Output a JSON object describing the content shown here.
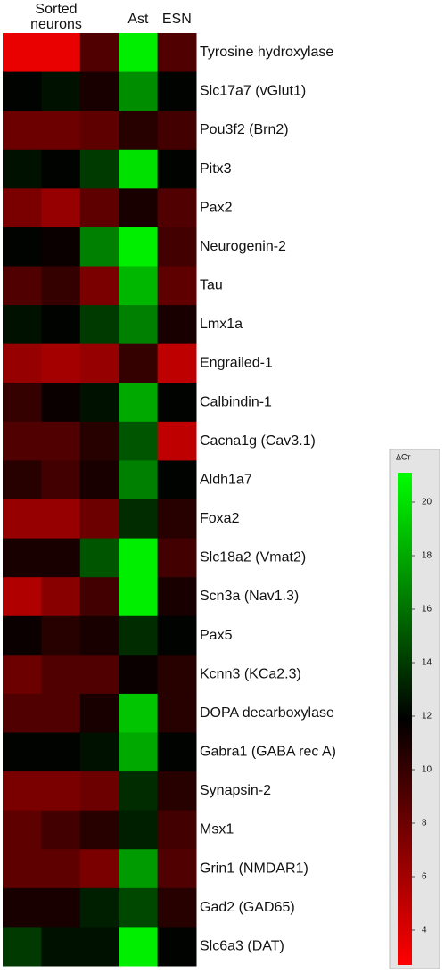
{
  "chart_data": {
    "type": "heatmap",
    "column_group": "Sorted neurons",
    "x": [
      null,
      null,
      null,
      "Ast",
      "ESN"
    ],
    "rows": [
      "Tyrosine hydroxylase",
      "Slc17a7 (vGlut1)",
      "Pou3f2 (Brn2)",
      "Pitx3",
      "Pax2",
      "Neurogenin-2",
      "Tau",
      "Lmx1a",
      "Engrailed-1",
      "Calbindin-1",
      "Cacna1g (Cav3.1)",
      "Aldh1a7",
      "Foxa2",
      "Slc18a2 (Vmat2)",
      "Scn3a (Nav1.3)",
      "Pax5",
      "Kcnn3 (KCa2.3)",
      "DOPA decarboxylase",
      "Gabra1 (GABA rec A)",
      "Synapsin-2",
      "Msx1",
      "Grin1 (NMDAR1)",
      "Gad2 (GAD65)",
      "Slc6a3 (DAT)"
    ],
    "values": [
      [
        3.5,
        3.5,
        9,
        20.5,
        9
      ],
      [
        12,
        12.5,
        11,
        17,
        12
      ],
      [
        8,
        8,
        8.5,
        10.5,
        9.5
      ],
      [
        12.5,
        12,
        14,
        20,
        12
      ],
      [
        7.5,
        6.5,
        8.5,
        11,
        9
      ],
      [
        12,
        11.5,
        16.5,
        20.5,
        9.5
      ],
      [
        9,
        10,
        7.5,
        18.5,
        8.5
      ],
      [
        12.5,
        12,
        14,
        16.5,
        11
      ],
      [
        6.5,
        6,
        6.5,
        10,
        5
      ],
      [
        10,
        11.5,
        12.5,
        18,
        12
      ],
      [
        9,
        9,
        10.5,
        15,
        5
      ],
      [
        10.5,
        9.5,
        11,
        16.5,
        12
      ],
      [
        6.5,
        6.5,
        8,
        13.5,
        10.5
      ],
      [
        11,
        11,
        15,
        20.5,
        9.5
      ],
      [
        5.5,
        7,
        9.5,
        20.5,
        11
      ],
      [
        11.5,
        10.5,
        11,
        13.5,
        12
      ],
      [
        8,
        9,
        9,
        11.5,
        10.5
      ],
      [
        9,
        9,
        11,
        19,
        10.5
      ],
      [
        12,
        12,
        12.5,
        18,
        12
      ],
      [
        7.5,
        7.5,
        8,
        13.5,
        10.5
      ],
      [
        8.5,
        9.5,
        10.5,
        13,
        9.5
      ],
      [
        8.5,
        8.5,
        7.5,
        17.5,
        9
      ],
      [
        11,
        11,
        13,
        14.5,
        10.5
      ],
      [
        14,
        12.5,
        12.5,
        20.5,
        12
      ]
    ],
    "colorbar": {
      "label": "ΔCт",
      "lim": [
        2.7,
        21.1
      ],
      "ticks": [
        4,
        6,
        8,
        10,
        12,
        14,
        16,
        18,
        20
      ],
      "colors": [
        "#ff0000",
        "#000000",
        "#00ff00"
      ]
    }
  }
}
